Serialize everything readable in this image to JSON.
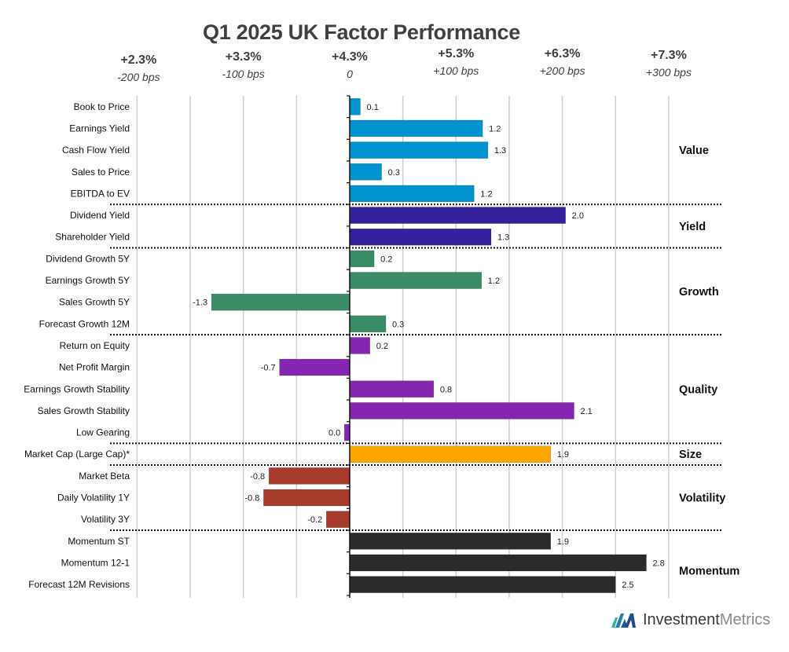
{
  "chart_data": {
    "type": "bar",
    "orientation": "horizontal",
    "title": "Q1 2025 UK Factor Performance",
    "xlim": [
      -2,
      3
    ],
    "grid": true,
    "top_axis_labels": [
      {
        "value": -2,
        "pct": "+2.3%",
        "bps": "-200 bps"
      },
      {
        "value": -1,
        "pct": "+3.3%",
        "bps": "-100 bps"
      },
      {
        "value": 0,
        "pct": "+4.3%",
        "bps": "0"
      },
      {
        "value": 1,
        "pct": "+5.3%",
        "bps": "+100 bps"
      },
      {
        "value": 2,
        "pct": "+6.3%",
        "bps": "+200 bps"
      },
      {
        "value": 3,
        "pct": "+7.3%",
        "bps": "+300 bps"
      }
    ],
    "groups": [
      {
        "name": "Value",
        "color": "#0093CF",
        "items": [
          {
            "label": "Book to Price",
            "value": 0.1,
            "text": "0.1"
          },
          {
            "label": "Earnings Yield",
            "value": 1.25,
            "text": "1.2"
          },
          {
            "label": "Cash Flow Yield",
            "value": 1.3,
            "text": "1.3"
          },
          {
            "label": "Sales to Price",
            "value": 0.3,
            "text": "0.3"
          },
          {
            "label": "EBITDA to EV",
            "value": 1.17,
            "text": "1.2"
          }
        ]
      },
      {
        "name": "Yield",
        "color": "#33209A",
        "items": [
          {
            "label": "Dividend Yield",
            "value": 2.03,
            "text": "2.0"
          },
          {
            "label": "Shareholder Yield",
            "value": 1.33,
            "text": "1.3"
          }
        ]
      },
      {
        "name": "Growth",
        "color": "#3A8C66",
        "items": [
          {
            "label": "Dividend Growth 5Y",
            "value": 0.23,
            "text": "0.2"
          },
          {
            "label": "Earnings Growth 5Y",
            "value": 1.24,
            "text": "1.2"
          },
          {
            "label": "Sales Growth 5Y",
            "value": -1.3,
            "text": "-1.3"
          },
          {
            "label": "Forecast Growth 12M",
            "value": 0.34,
            "text": "0.3"
          }
        ]
      },
      {
        "name": "Quality",
        "color": "#8526B0",
        "items": [
          {
            "label": "Return on Equity",
            "value": 0.19,
            "text": "0.2"
          },
          {
            "label": "Net Profit Margin",
            "value": -0.66,
            "text": "-0.7"
          },
          {
            "label": "Earnings Growth Stability",
            "value": 0.79,
            "text": "0.8"
          },
          {
            "label": "Sales Growth Stability",
            "value": 2.11,
            "text": "2.1"
          },
          {
            "label": "Low Gearing",
            "value": -0.05,
            "text": "0.0"
          }
        ]
      },
      {
        "name": "Size",
        "color": "#FFA500",
        "items": [
          {
            "label": "Market Cap (Large Cap)*",
            "value": 1.89,
            "text": "1.9"
          }
        ]
      },
      {
        "name": "Volatility",
        "color": "#A63B2C",
        "items": [
          {
            "label": "Market Beta",
            "value": -0.76,
            "text": "-0.8"
          },
          {
            "label": "Daily Volatility 1Y",
            "value": -0.81,
            "text": "-0.8"
          },
          {
            "label": "Volatility 3Y",
            "value": -0.22,
            "text": "-0.2"
          }
        ]
      },
      {
        "name": "Momentum",
        "color": "#2A2A2A",
        "items": [
          {
            "label": "Momentum ST",
            "value": 1.89,
            "text": "1.9"
          },
          {
            "label": "Momentum 12-1",
            "value": 2.79,
            "text": "2.8"
          },
          {
            "label": "Forecast 12M Revisions",
            "value": 2.5,
            "text": "2.5"
          }
        ]
      }
    ]
  },
  "footer": {
    "brand_part1": "Investment",
    "brand_part2": "Metrics"
  }
}
